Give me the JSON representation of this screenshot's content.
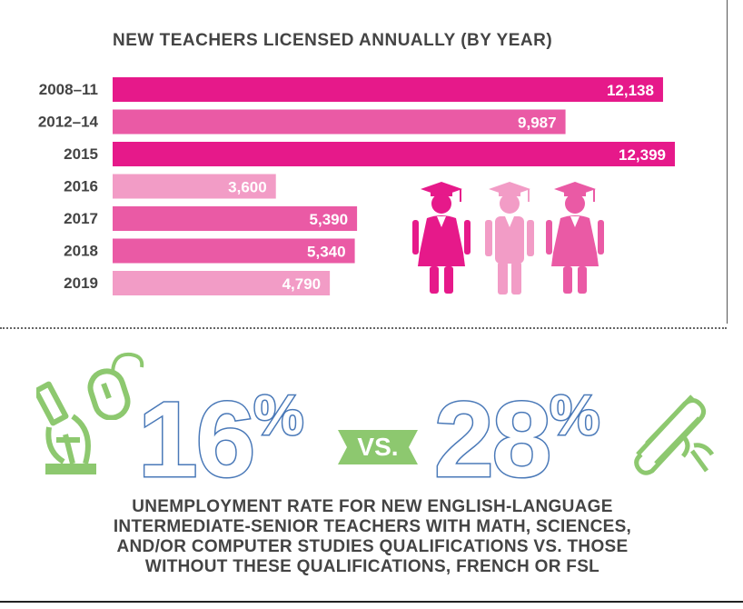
{
  "colors": {
    "bar_dark": "#e6198a",
    "bar_mid": "#ea5aa5",
    "bar_light": "#f29cc6",
    "stat_blue": "#4a79b8",
    "green": "#8dc86f",
    "text": "#444444"
  },
  "chart_data": {
    "type": "bar",
    "orientation": "horizontal",
    "title": "NEW TEACHERS LICENSED ANNUALLY (BY YEAR)",
    "categories": [
      "2008–11",
      "2012–14",
      "2015",
      "2016",
      "2017",
      "2018",
      "2019"
    ],
    "values": [
      12138,
      9987,
      12399,
      3600,
      5390,
      5340,
      4790
    ],
    "labels": [
      "12,138",
      "9,987",
      "12,399",
      "3,600",
      "5,390",
      "5,340",
      "4,790"
    ],
    "bar_colors": [
      "#e6198a",
      "#ea5aa5",
      "#e6198a",
      "#f29cc6",
      "#ea5aa5",
      "#ea5aa5",
      "#f29cc6"
    ],
    "xlim": [
      0,
      12399
    ],
    "grid": false
  },
  "stats": {
    "left_value": "16",
    "right_value": "28",
    "percent_sign": "%",
    "vs_label": "VS.",
    "description_lines": [
      "UNEMPLOYMENT RATE FOR NEW ENGLISH-LANGUAGE",
      "INTERMEDIATE-SENIOR TEACHERS WITH MATH, SCIENCES,",
      "AND/OR COMPUTER STUDIES QUALIFICATIONS VS. THOSE",
      "WITHOUT THESE QUALIFICATIONS, FRENCH OR FSL"
    ]
  },
  "icons": {
    "graduates": [
      "graduate-female-icon",
      "graduate-male-icon",
      "graduate-female-icon"
    ],
    "microscope": "microscope-icon",
    "mouse": "computer-mouse-icon",
    "diploma": "diploma-scroll-icon"
  }
}
